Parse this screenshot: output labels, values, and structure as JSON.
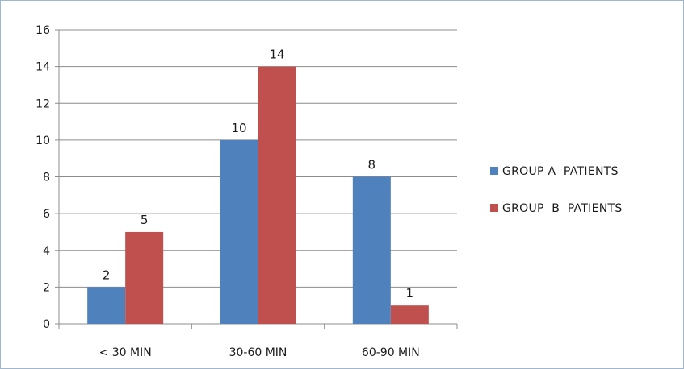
{
  "chart_data": {
    "type": "bar",
    "categories": [
      "< 30 MIN",
      "30-60 MIN",
      "60-90 MIN"
    ],
    "series": [
      {
        "name": "GROUP A  PATIENTS",
        "values": [
          2,
          10,
          8
        ],
        "color": "#4f81bd"
      },
      {
        "name": "GROUP  B  PATIENTS",
        "values": [
          5,
          14,
          1
        ],
        "color": "#c0504d"
      }
    ],
    "data_labels_shown": true,
    "y_ticks": [
      "0",
      "2",
      "4",
      "6",
      "8",
      "10",
      "12",
      "14",
      "16"
    ],
    "ylim": [
      0,
      16
    ],
    "grid": true,
    "legend_position": "right"
  }
}
